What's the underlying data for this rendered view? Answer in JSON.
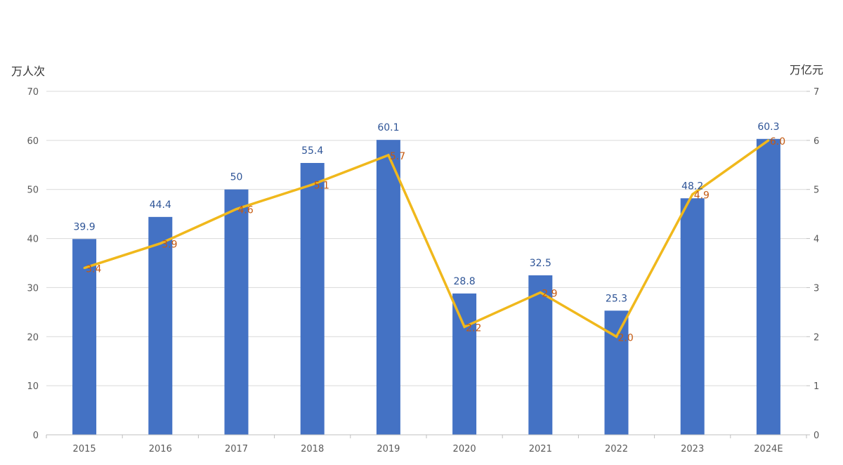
{
  "chart_data": {
    "type": "bar",
    "categories": [
      "2015",
      "2016",
      "2017",
      "2018",
      "2019",
      "2020",
      "2021",
      "2022",
      "2023",
      "2024E"
    ],
    "series": [
      {
        "type": "bar",
        "axis": "left",
        "color": "#4472c4",
        "values": [
          39.9,
          44.4,
          50,
          55.4,
          60.1,
          28.8,
          32.5,
          25.3,
          48.2,
          60.3
        ],
        "labels": [
          "39.9",
          "44.4",
          "50",
          "55.4",
          "60.1",
          "28.8",
          "32.5",
          "25.3",
          "48.2",
          "60.3"
        ]
      },
      {
        "type": "line",
        "axis": "right",
        "color": "#f0b81c",
        "label_color": "#c55a11",
        "values": [
          3.4,
          3.9,
          4.6,
          5.1,
          5.7,
          2.2,
          2.9,
          2.0,
          4.9,
          6.0
        ],
        "labels": [
          "3.4",
          "3.9",
          "4.6",
          "5.1",
          "5.7",
          "2.2",
          "2.9",
          "2.0",
          "4.9",
          "6.0"
        ]
      }
    ],
    "y_left": {
      "unit": "万人次",
      "min": 0,
      "max": 70,
      "ticks": [
        "0",
        "10",
        "20",
        "30",
        "40",
        "50",
        "60",
        "70"
      ]
    },
    "y_right": {
      "unit": "万亿元",
      "min": 0,
      "max": 7,
      "ticks": [
        "0",
        "1",
        "2",
        "3",
        "4",
        "5",
        "6",
        "7"
      ]
    },
    "grid": true,
    "legend": "none"
  }
}
